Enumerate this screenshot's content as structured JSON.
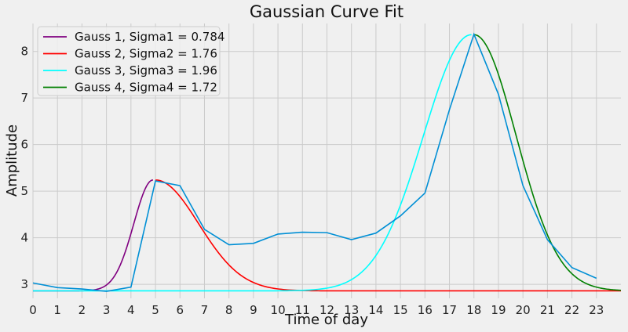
{
  "chart_data": {
    "type": "line",
    "title": "Gaussian Curve Fit",
    "xlabel": "Time of day",
    "ylabel": "Amplitude",
    "xlim": [
      0,
      24
    ],
    "ylim": [
      2.7,
      8.6
    ],
    "x_ticks": [
      0,
      1,
      2,
      3,
      4,
      5,
      6,
      7,
      8,
      9,
      10,
      11,
      12,
      13,
      14,
      15,
      16,
      17,
      18,
      19,
      20,
      21,
      22,
      23
    ],
    "y_ticks": [
      3,
      4,
      5,
      6,
      7,
      8
    ],
    "grid": true,
    "legend_position": "top-left",
    "colors": {
      "background": "#f0f0f0",
      "data": "#008fd5",
      "gauss1": "#800080",
      "gauss2": "#ff0000",
      "gauss3": "#00ffff",
      "gauss4": "#008000"
    },
    "data_series": {
      "x": [
        0,
        1,
        2,
        3,
        4,
        5,
        6,
        7,
        8,
        9,
        10,
        11,
        12,
        13,
        14,
        15,
        16,
        17,
        18,
        19,
        20,
        21,
        22,
        23
      ],
      "y": [
        3.03,
        2.93,
        2.9,
        2.85,
        2.94,
        5.22,
        5.12,
        4.18,
        3.85,
        3.88,
        4.08,
        4.12,
        4.11,
        3.96,
        4.1,
        4.47,
        4.96,
        6.75,
        8.37,
        7.08,
        5.12,
        3.96,
        3.36,
        3.13
      ]
    },
    "fits": [
      {
        "name": "Gauss 1, Sigma1 = 0.784",
        "baseline": 2.86,
        "amplitude": 2.38,
        "mu": 4.9,
        "sigma": 0.784,
        "x_range": [
          0,
          4.9
        ]
      },
      {
        "name": "Gauss 2, Sigma2 = 1.76",
        "baseline": 2.86,
        "amplitude": 2.38,
        "mu": 5.0,
        "sigma": 1.76,
        "x_range": [
          5.0,
          24
        ]
      },
      {
        "name": "Gauss 3, Sigma3 = 1.96",
        "baseline": 2.86,
        "amplitude": 5.5,
        "mu": 17.9,
        "sigma": 1.96,
        "x_range": [
          0,
          17.9
        ]
      },
      {
        "name": "Gauss 4, Sigma4 = 1.72",
        "baseline": 2.86,
        "amplitude": 5.5,
        "mu": 18.0,
        "sigma": 1.72,
        "x_range": [
          18.0,
          24
        ]
      }
    ]
  }
}
